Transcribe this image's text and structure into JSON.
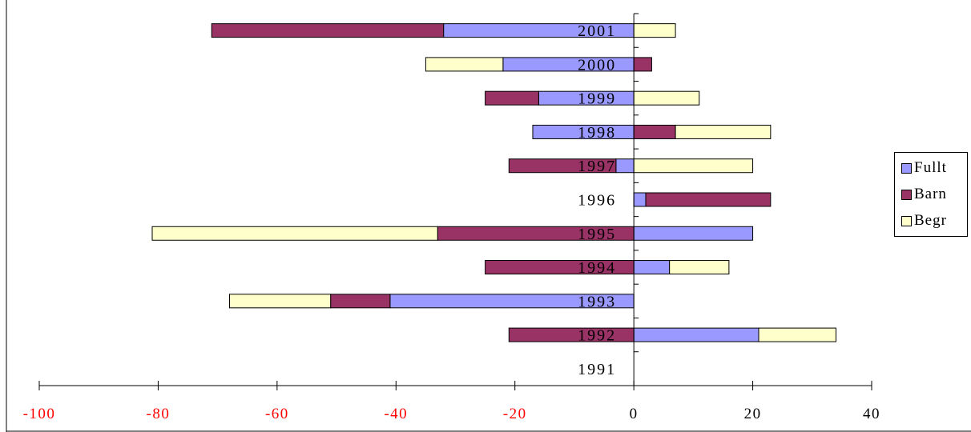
{
  "chart_data": {
    "type": "bar",
    "orientation": "horizontal",
    "stacked": true,
    "categories": [
      "1991",
      "1992",
      "1993",
      "1994",
      "1995",
      "1996",
      "1997",
      "1998",
      "1999",
      "2000",
      "2001"
    ],
    "series": [
      {
        "name": "Fullt",
        "color": "#9999ff",
        "values": [
          0,
          21,
          -41,
          6,
          20,
          2,
          -3,
          -17,
          -16,
          -22,
          -32
        ]
      },
      {
        "name": "Barn",
        "color": "#993366",
        "values": [
          0,
          -21,
          -10,
          -25,
          -33,
          21,
          -18,
          7,
          -9,
          3,
          -39
        ]
      },
      {
        "name": "Begr",
        "color": "#ffffcc",
        "values": [
          0,
          13,
          -17,
          10,
          -48,
          0,
          20,
          16,
          11,
          -13,
          7
        ]
      }
    ],
    "xlim": [
      -100,
      40
    ],
    "x_ticks": [
      "-100",
      "-80",
      "-60",
      "-40",
      "-20",
      "0",
      "20",
      "40"
    ],
    "tick_colors": {
      "negative": "#ff0000",
      "nonnegative": "#000000"
    },
    "legend_position": "right",
    "grid": false
  }
}
